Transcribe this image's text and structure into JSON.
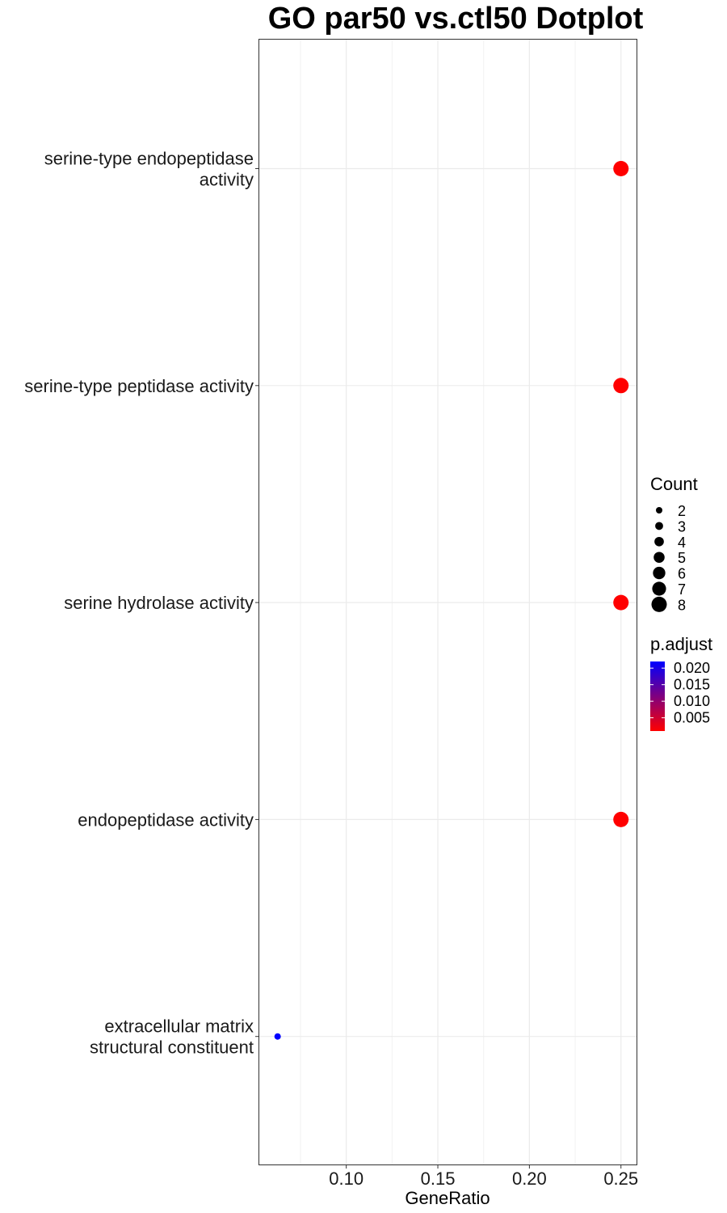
{
  "chart_data": {
    "type": "scatter",
    "title": "GO par50 vs.ctl50 Dotplot",
    "xlabel": "GeneRatio",
    "ylabel": "",
    "xlim": [
      0.0525,
      0.2585
    ],
    "x_ticks": [
      {
        "value": 0.1,
        "label": "0.10"
      },
      {
        "value": 0.15,
        "label": "0.15"
      },
      {
        "value": 0.2,
        "label": "0.20"
      },
      {
        "value": 0.25,
        "label": "0.25"
      }
    ],
    "grid": true,
    "categories": [
      {
        "lines": [
          "serine-type endopeptidase",
          "activity"
        ]
      },
      {
        "lines": [
          "serine-type peptidase activity"
        ]
      },
      {
        "lines": [
          "serine hydrolase activity"
        ]
      },
      {
        "lines": [
          "endopeptidase activity"
        ]
      },
      {
        "lines": [
          "extracellular matrix",
          "structural constituent"
        ]
      }
    ],
    "points": [
      {
        "category_index": 0,
        "gene_ratio": 0.25,
        "count": 8,
        "p_adjust": 0.001,
        "color": "#ff0000"
      },
      {
        "category_index": 1,
        "gene_ratio": 0.25,
        "count": 8,
        "p_adjust": 0.001,
        "color": "#ff0000"
      },
      {
        "category_index": 2,
        "gene_ratio": 0.25,
        "count": 8,
        "p_adjust": 0.001,
        "color": "#ff0000"
      },
      {
        "category_index": 3,
        "gene_ratio": 0.25,
        "count": 8,
        "p_adjust": 0.001,
        "color": "#ff0000"
      },
      {
        "category_index": 4,
        "gene_ratio": 0.0625,
        "count": 2,
        "p_adjust": 0.022,
        "color": "#0000ff"
      }
    ],
    "legend": {
      "placement": "right",
      "size": {
        "title": "Count",
        "items": [
          {
            "value": 2,
            "label": "2"
          },
          {
            "value": 3,
            "label": "3"
          },
          {
            "value": 4,
            "label": "4"
          },
          {
            "value": 5,
            "label": "5"
          },
          {
            "value": 6,
            "label": "6"
          },
          {
            "value": 7,
            "label": "7"
          },
          {
            "value": 8,
            "label": "8"
          }
        ]
      },
      "color": {
        "title": "p.adjust",
        "high_color": "#0000ff",
        "low_color": "#ff0000",
        "range": [
          0.001,
          0.022
        ],
        "ticks": [
          {
            "value": 0.02,
            "label": "0.020"
          },
          {
            "value": 0.015,
            "label": "0.015"
          },
          {
            "value": 0.01,
            "label": "0.010"
          },
          {
            "value": 0.005,
            "label": "0.005"
          }
        ]
      }
    }
  }
}
